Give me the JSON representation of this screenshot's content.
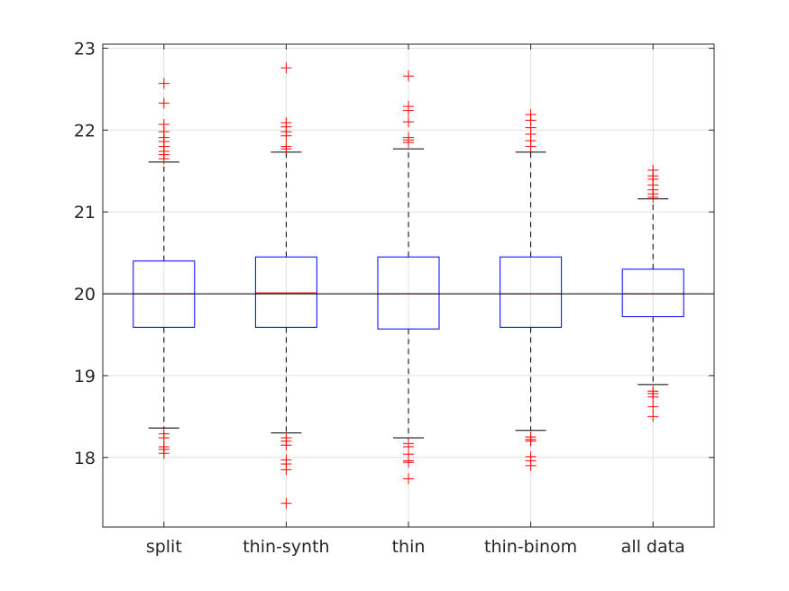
{
  "chart_data": {
    "type": "box",
    "categories": [
      "split",
      "thin-synth",
      "thin",
      "thin-binom",
      "all data"
    ],
    "ylim": [
      17.15,
      23.05
    ],
    "yticks": [
      18,
      19,
      20,
      21,
      22,
      23
    ],
    "ytick_labels": [
      "18",
      "19",
      "20",
      "21",
      "22",
      "23"
    ],
    "grid": true,
    "reference_line": 20,
    "colors": {
      "box": "#0000ff",
      "median": "#ff0000",
      "whisker": "#000000",
      "outlier": "#ff0000",
      "grid": "#e0e0e0",
      "axis": "#262626"
    },
    "boxes": [
      {
        "label": "split",
        "q1": 19.59,
        "median": 20.0,
        "q3": 20.4,
        "whisker_low": 18.36,
        "whisker_high": 21.61,
        "outliers": [
          18.29,
          18.24,
          18.13,
          18.1,
          18.05,
          21.65,
          21.7,
          21.74,
          21.8,
          21.86,
          21.91,
          21.98,
          22.07,
          22.33,
          22.57
        ]
      },
      {
        "label": "thin-synth",
        "q1": 19.59,
        "median": 20.01,
        "q3": 20.45,
        "whisker_low": 18.3,
        "whisker_high": 21.73,
        "outliers": [
          18.24,
          18.2,
          18.15,
          17.97,
          17.92,
          17.85,
          17.44,
          21.77,
          21.8,
          21.93,
          21.98,
          22.04,
          22.09,
          22.76
        ]
      },
      {
        "label": "thin",
        "q1": 19.57,
        "median": 20.0,
        "q3": 20.45,
        "whisker_low": 18.24,
        "whisker_high": 21.77,
        "outliers": [
          18.17,
          18.13,
          18.04,
          17.96,
          17.94,
          17.74,
          21.85,
          21.88,
          21.91,
          22.1,
          22.24,
          22.29,
          22.66
        ]
      },
      {
        "label": "thin-binom",
        "q1": 19.59,
        "median": 20.0,
        "q3": 20.45,
        "whisker_low": 18.33,
        "whisker_high": 21.73,
        "outliers": [
          18.25,
          18.22,
          18.2,
          18.01,
          17.96,
          17.9,
          21.8,
          21.87,
          21.95,
          22.03,
          22.12,
          22.19
        ]
      },
      {
        "label": "all data",
        "q1": 19.72,
        "median": 20.0,
        "q3": 20.3,
        "whisker_low": 18.89,
        "whisker_high": 21.16,
        "outliers": [
          18.81,
          18.78,
          18.74,
          18.62,
          18.5,
          21.18,
          21.22,
          21.27,
          21.33,
          21.4,
          21.44,
          21.51
        ]
      }
    ]
  }
}
